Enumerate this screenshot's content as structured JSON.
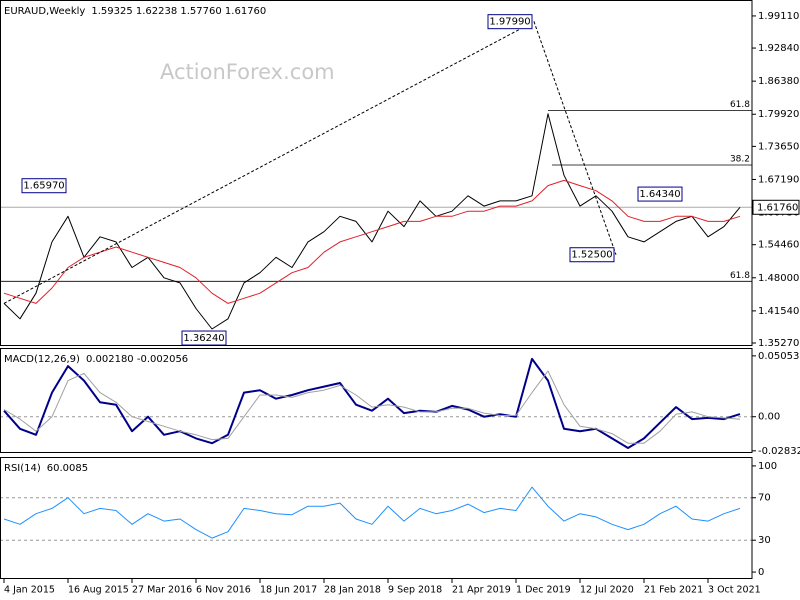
{
  "chart_data": [
    {
      "type": "line",
      "title": "EURAUD,Weekly",
      "subtitle": "1.59325 1.62238 1.57760 1.61760",
      "watermark": "ActionForex.com",
      "x": [
        0,
        8,
        16,
        24,
        32,
        40,
        48,
        56,
        64,
        72,
        80,
        88,
        96,
        104,
        112,
        120,
        128,
        136,
        144,
        152,
        160,
        168,
        176,
        184,
        192,
        200,
        208,
        216,
        224,
        232,
        240,
        248,
        256,
        264,
        272,
        280,
        288,
        296,
        304,
        312,
        320,
        328,
        336,
        344,
        352,
        360,
        368
      ],
      "xlim": [
        -2,
        374
      ],
      "ylim": [
        1.3488,
        2.0183
      ],
      "yticks": [
        {
          "value": 1.3527,
          "label": "1.35270"
        },
        {
          "value": 1.4154,
          "label": "1.41540"
        },
        {
          "value": 1.48,
          "label": "1.48000"
        },
        {
          "value": 1.5446,
          "label": "1.54460"
        },
        {
          "value": 1.6073,
          "label": "1.60730"
        },
        {
          "value": 1.6719,
          "label": "1.67190"
        },
        {
          "value": 1.7365,
          "label": "1.73650"
        },
        {
          "value": 1.7992,
          "label": "1.79920"
        },
        {
          "value": 1.8638,
          "label": "1.86380"
        },
        {
          "value": 1.9284,
          "label": "1.92840"
        },
        {
          "value": 1.9911,
          "label": "1.99110"
        }
      ],
      "series": [
        {
          "name": "EURAUD",
          "color": "#000000",
          "values": [
            1.43,
            1.4,
            1.45,
            1.55,
            1.6,
            1.52,
            1.56,
            1.55,
            1.5,
            1.52,
            1.48,
            1.47,
            1.42,
            1.38,
            1.4,
            1.47,
            1.49,
            1.52,
            1.5,
            1.55,
            1.57,
            1.6,
            1.59,
            1.55,
            1.61,
            1.58,
            1.63,
            1.6,
            1.61,
            1.64,
            1.62,
            1.63,
            1.63,
            1.64,
            1.8,
            1.68,
            1.62,
            1.64,
            1.61,
            1.56,
            1.55,
            1.57,
            1.59,
            1.6,
            1.56,
            1.58,
            1.6176
          ]
        },
        {
          "name": "MA",
          "color": "#e0202a",
          "values": [
            1.45,
            1.44,
            1.43,
            1.46,
            1.5,
            1.52,
            1.53,
            1.54,
            1.53,
            1.52,
            1.51,
            1.5,
            1.48,
            1.45,
            1.43,
            1.44,
            1.45,
            1.47,
            1.49,
            1.5,
            1.53,
            1.55,
            1.56,
            1.57,
            1.58,
            1.59,
            1.59,
            1.6,
            1.6,
            1.61,
            1.61,
            1.62,
            1.62,
            1.63,
            1.66,
            1.67,
            1.66,
            1.65,
            1.63,
            1.6,
            1.59,
            1.59,
            1.6,
            1.6,
            1.59,
            1.59,
            1.6
          ]
        }
      ],
      "annotations": [
        {
          "label": "1.97990",
          "value": 1.9799,
          "x": 265
        },
        {
          "label": "1.65970",
          "value": 1.6597,
          "x": 32
        },
        {
          "label": "1.36240",
          "value": 1.3624,
          "x": 112
        },
        {
          "label": "1.52500",
          "value": 1.525,
          "x": 306
        },
        {
          "label": "1.64340",
          "value": 1.6434,
          "x": 340
        }
      ],
      "fib_levels": [
        {
          "ratio": 61.8,
          "price": 1.8068,
          "from": 272
        },
        {
          "ratio": 38.2,
          "price": 1.7001,
          "from": 274
        },
        {
          "ratio": 61.8,
          "price": 1.4731,
          "from": -2
        }
      ],
      "last": {
        "value": 1.6176,
        "label": "1.61760"
      }
    },
    {
      "type": "line",
      "title": "MACD(12,26,9)",
      "subtitle": "0.002180 -0.002056",
      "ylim": [
        -0.0293,
        0.0554
      ],
      "yticks": [
        -0.028323,
        {
          "value": 0,
          "label": "0.00"
        },
        0.05053
      ],
      "series": [
        {
          "name": "MACD",
          "color": "#00008b",
          "width": 2,
          "values": [
            0.005,
            -0.01,
            -0.015,
            0.02,
            0.042,
            0.03,
            0.012,
            0.01,
            -0.012,
            0.0,
            -0.015,
            -0.012,
            -0.018,
            -0.022,
            -0.015,
            0.02,
            0.022,
            0.015,
            0.018,
            0.022,
            0.025,
            0.028,
            0.01,
            0.005,
            0.015,
            0.003,
            0.005,
            0.004,
            0.009,
            0.006,
            0.0,
            0.002,
            0.0,
            0.048,
            0.03,
            -0.01,
            -0.012,
            -0.01,
            -0.018,
            -0.026,
            -0.018,
            -0.005,
            0.008,
            -0.002,
            -0.001,
            -0.002,
            0.00218
          ]
        },
        {
          "name": "Signal",
          "color": "#a0a0a0",
          "width": 1,
          "values": [
            0.006,
            -0.002,
            -0.012,
            0.0,
            0.03,
            0.036,
            0.02,
            0.012,
            0.0,
            -0.004,
            -0.008,
            -0.012,
            -0.015,
            -0.019,
            -0.018,
            0.0,
            0.018,
            0.018,
            0.016,
            0.02,
            0.022,
            0.026,
            0.018,
            0.008,
            0.01,
            0.008,
            0.004,
            0.004,
            0.007,
            0.007,
            0.003,
            0.001,
            0.001,
            0.02,
            0.038,
            0.01,
            -0.008,
            -0.01,
            -0.014,
            -0.022,
            -0.022,
            -0.012,
            0.002,
            0.004,
            0.0,
            -0.001,
            -0.002056
          ]
        }
      ]
    },
    {
      "type": "line",
      "title": "RSI(14)",
      "subtitle": "60.0085",
      "ylim": [
        -5.6,
        106.5
      ],
      "yticks": [
        0,
        30,
        70,
        100
      ],
      "levels": [
        30,
        70
      ],
      "series": [
        {
          "name": "RSI",
          "color": "#1e90ff",
          "width": 1,
          "values": [
            50,
            45,
            55,
            60,
            70,
            55,
            60,
            58,
            45,
            55,
            48,
            50,
            40,
            32,
            38,
            60,
            58,
            55,
            54,
            62,
            62,
            65,
            50,
            45,
            62,
            48,
            60,
            55,
            58,
            64,
            56,
            60,
            58,
            80,
            62,
            48,
            55,
            52,
            45,
            40,
            45,
            55,
            62,
            50,
            48,
            55,
            60.0085
          ]
        }
      ],
      "xticks": [
        {
          "value": 0,
          "label": "4 Jan 2015"
        },
        {
          "value": 32,
          "label": "16 Aug 2015"
        },
        {
          "value": 64,
          "label": "27 Mar 2016"
        },
        {
          "value": 96,
          "label": "6 Nov 2016"
        },
        {
          "value": 128,
          "label": "18 Jun 2017"
        },
        {
          "value": 160,
          "label": "28 Jan 2018"
        },
        {
          "value": 192,
          "label": "9 Sep 2018"
        },
        {
          "value": 224,
          "label": "21 Apr 2019"
        },
        {
          "value": 256,
          "label": "1 Dec 2019"
        },
        {
          "value": 288,
          "label": "12 Jul 2020"
        },
        {
          "value": 320,
          "label": "21 Feb 2021"
        },
        {
          "value": 352,
          "label": "3 Oct 2021"
        }
      ]
    }
  ]
}
